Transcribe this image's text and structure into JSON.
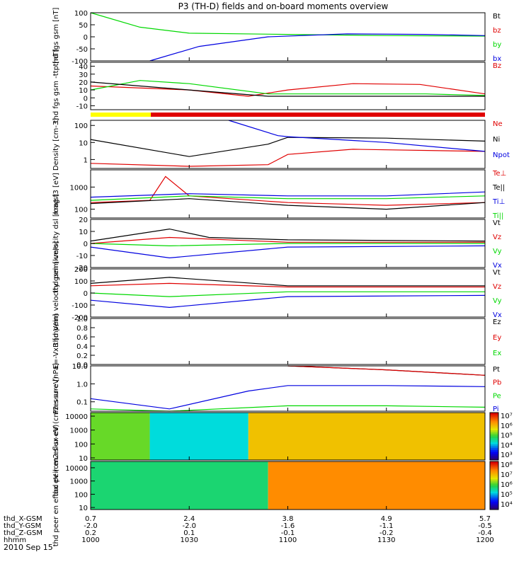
{
  "title": "P3 (TH-D) fields and on-board moments overview",
  "date": "2010 Sep 15",
  "colors": {
    "red": "#e00000",
    "green": "#00d800",
    "blue": "#0000e0",
    "black": "#000000",
    "yellow": "#ffff00"
  },
  "chart_data": [
    {
      "type": "line",
      "panel": "fgs-gsm",
      "ylabel": "thd fgs gsm [nT]",
      "yscale": "linear",
      "ylim": [
        -100,
        100
      ],
      "yticks": [
        "100",
        "50",
        "0",
        "-50",
        "-100"
      ],
      "legend": [
        "Bt",
        "bz",
        "by",
        "bx"
      ],
      "series": [
        {
          "name": "by",
          "color": "green",
          "x": [
            10.0,
            10.25,
            10.5,
            11.0,
            11.5,
            12.0
          ],
          "y": [
            100,
            40,
            15,
            10,
            5,
            3
          ]
        },
        {
          "name": "bx",
          "color": "blue",
          "x": [
            10.3,
            10.55,
            10.9,
            11.3,
            11.7,
            12.0
          ],
          "y": [
            -100,
            -40,
            0,
            12,
            10,
            5
          ]
        }
      ]
    },
    {
      "type": "line",
      "panel": "fgs-gsm-ttp",
      "ylabel": "thd fgs gsm -ttp [nT]",
      "yscale": "linear",
      "ylim": [
        -15,
        45
      ],
      "yticks": [
        "40",
        "30",
        "20",
        "10",
        "0",
        "-10"
      ],
      "legend": [
        "Bz"
      ],
      "series": [
        {
          "name": "Bz",
          "color": "red",
          "x": [
            10.0,
            10.5,
            10.8,
            11.0,
            11.33,
            11.67,
            12.0
          ],
          "y": [
            15,
            10,
            2,
            10,
            18,
            17,
            5
          ]
        },
        {
          "color": "green",
          "x": [
            10.0,
            10.25,
            10.5,
            10.9,
            11.3,
            11.7,
            12.0
          ],
          "y": [
            10,
            22,
            18,
            5,
            5,
            5,
            3
          ]
        },
        {
          "color": "black",
          "x": [
            10.0,
            10.5,
            10.9,
            11.3,
            11.7,
            12.0
          ],
          "y": [
            20,
            10,
            2,
            2,
            2,
            2
          ]
        }
      ]
    },
    {
      "type": "line",
      "panel": "density",
      "ylabel": "Density [cm-3]",
      "yscale": "log",
      "ylim": [
        0.3,
        200
      ],
      "yticks": [
        "100",
        "10",
        "1"
      ],
      "legend": [
        "Ne",
        "Ni",
        "Npot"
      ],
      "series": [
        {
          "name": "Ne",
          "color": "red",
          "x": [
            10.0,
            10.5,
            10.9,
            11.0,
            11.33,
            12.0
          ],
          "y": [
            0.6,
            0.4,
            0.5,
            2,
            4,
            3
          ]
        },
        {
          "name": "Ni",
          "color": "black",
          "x": [
            10.0,
            10.5,
            10.9,
            11.0,
            11.5,
            12.0
          ],
          "y": [
            15,
            1.5,
            8,
            20,
            18,
            12
          ]
        },
        {
          "name": "Npot",
          "color": "blue",
          "x": [
            10.7,
            10.95,
            11.0,
            11.5,
            12.0
          ],
          "y": [
            200,
            25,
            22,
            10,
            3
          ]
        }
      ]
    },
    {
      "type": "line",
      "panel": "temperature",
      "ylabel": "mag t3 [eV]",
      "yscale": "log",
      "ylim": [
        40,
        6000
      ],
      "yticks": [
        "1000",
        "100"
      ],
      "legend": [
        "Te⊥",
        "Te||",
        "Ti⊥",
        "Ti||"
      ],
      "series": [
        {
          "name": "Te⊥",
          "color": "red",
          "x": [
            10.0,
            10.3,
            10.38,
            10.5,
            11.0,
            11.5,
            12.0
          ],
          "y": [
            200,
            250,
            3000,
            400,
            200,
            150,
            200
          ]
        },
        {
          "name": "Te||",
          "color": "black",
          "x": [
            10.0,
            10.5,
            11.0,
            11.5,
            12.0
          ],
          "y": [
            180,
            300,
            150,
            100,
            200
          ]
        },
        {
          "name": "Ti⊥",
          "color": "blue",
          "x": [
            10.0,
            10.5,
            11.0,
            11.5,
            12.0
          ],
          "y": [
            350,
            500,
            400,
            400,
            600
          ]
        },
        {
          "name": "Ti||",
          "color": "green",
          "x": [
            10.0,
            10.5,
            11.0,
            11.5,
            12.0
          ],
          "y": [
            250,
            400,
            300,
            300,
            400
          ]
        }
      ]
    },
    {
      "type": "line",
      "panel": "peim-velocity-dsl",
      "ylabel": "thd peim velocity dsl [km/s]",
      "yscale": "linear",
      "ylim": [
        -20,
        20
      ],
      "yticks": [
        "20",
        "10",
        "0",
        "-10",
        "-20"
      ],
      "legend": [
        "Vt",
        "Vz",
        "Vy",
        "Vx"
      ],
      "series": [
        {
          "name": "Vt",
          "color": "black",
          "x": [
            10.0,
            10.4,
            10.6,
            11.0,
            12.0
          ],
          "y": [
            2,
            12,
            5,
            3,
            2
          ]
        },
        {
          "name": "Vz",
          "color": "red",
          "x": [
            10.0,
            10.4,
            11.0,
            12.0
          ],
          "y": [
            0,
            5,
            1,
            1
          ]
        },
        {
          "name": "Vy",
          "color": "green",
          "x": [
            10.0,
            10.4,
            11.0,
            12.0
          ],
          "y": [
            0,
            -2,
            0,
            0
          ]
        },
        {
          "name": "Vx",
          "color": "blue",
          "x": [
            10.0,
            10.4,
            11.0,
            12.0
          ],
          "y": [
            -3,
            -12,
            -3,
            -2
          ]
        }
      ]
    },
    {
      "type": "line",
      "panel": "peim-velocity-gsm",
      "ylabel": "thd peim velocity gsm [km/s]",
      "yscale": "linear",
      "ylim": [
        -200,
        200
      ],
      "yticks": [
        "200",
        "100",
        "0",
        "-100",
        "-200"
      ],
      "legend": [
        "Vt",
        "Vz",
        "Vy",
        "Vx"
      ],
      "series": [
        {
          "name": "Vt",
          "color": "black",
          "x": [
            10.0,
            10.4,
            11.0,
            12.0
          ],
          "y": [
            80,
            130,
            60,
            60
          ]
        },
        {
          "name": "Vz",
          "color": "red",
          "x": [
            10.0,
            10.4,
            11.0,
            12.0
          ],
          "y": [
            60,
            80,
            50,
            50
          ]
        },
        {
          "name": "Vy",
          "color": "green",
          "x": [
            10.0,
            10.4,
            11.0,
            12.0
          ],
          "y": [
            0,
            -30,
            10,
            10
          ]
        },
        {
          "name": "Vx",
          "color": "blue",
          "x": [
            10.0,
            10.4,
            11.0,
            12.0
          ],
          "y": [
            -60,
            -120,
            -30,
            -20
          ]
        }
      ]
    },
    {
      "type": "line",
      "panel": "efield",
      "ylabel": "E=-VxB [mV/m]",
      "yscale": "linear",
      "ylim": [
        0,
        1
      ],
      "yticks": [
        "1.0",
        "0.8",
        "0.6",
        "0.4",
        "0.2",
        "0.0"
      ],
      "legend": [
        "Ez",
        "Ey",
        "Ex"
      ],
      "series": []
    },
    {
      "type": "line",
      "panel": "pressure",
      "ylabel": "Pressure [nPa]",
      "yscale": "log",
      "ylim": [
        0.03,
        10
      ],
      "yticks": [
        "10.0",
        "1.0",
        "0.1"
      ],
      "legend": [
        "Pt",
        "Pb",
        "Pe",
        "Pi"
      ],
      "series": [
        {
          "name": "Pt",
          "color": "black",
          "x": [
            11.0,
            11.5,
            12.0
          ],
          "y": [
            10,
            6,
            3
          ]
        },
        {
          "name": "Pb",
          "color": "red",
          "x": [
            11.0,
            11.5,
            12.0
          ],
          "y": [
            10,
            6,
            3
          ]
        },
        {
          "name": "Pe",
          "color": "green",
          "x": [
            10.0,
            10.4,
            11.0,
            11.5,
            12.0
          ],
          "y": [
            0.04,
            0.03,
            0.06,
            0.06,
            0.05
          ]
        },
        {
          "name": "Pi",
          "color": "blue",
          "x": [
            10.0,
            10.4,
            10.8,
            11.0,
            11.5,
            12.0
          ],
          "y": [
            0.15,
            0.04,
            0.4,
            0.8,
            0.8,
            0.7
          ]
        }
      ]
    },
    {
      "type": "heatmap",
      "panel": "peir-en-eflux",
      "ylabel": "thd peir en eflux eV (cm2-s-sr-eV)",
      "yscale": "log",
      "ylim": [
        7,
        18000
      ],
      "yticks": [
        "10000",
        "1000",
        "100",
        "10"
      ],
      "colorbar": [
        "10⁷",
        "10⁶",
        "10⁵",
        "10⁴",
        "10³"
      ],
      "regions": [
        {
          "x": [
            10.0,
            10.3
          ],
          "y": [
            7,
            18000
          ],
          "level": 0.55
        },
        {
          "x": [
            10.3,
            10.8
          ],
          "y": [
            7,
            18000
          ],
          "level": 0.35
        },
        {
          "x": [
            10.8,
            12.0
          ],
          "y": [
            7,
            18000
          ],
          "level": 0.72
        }
      ]
    },
    {
      "type": "heatmap",
      "panel": "peer-en-eflux",
      "ylabel": "thd peer en eflux eV (cm2-s-sr-eV)",
      "yscale": "log",
      "ylim": [
        7,
        30000
      ],
      "yticks": [
        "10000",
        "1000",
        "100",
        "10"
      ],
      "colorbar": [
        "10⁸",
        "10⁷",
        "10⁶",
        "10⁵",
        "10⁴"
      ],
      "regions": [
        {
          "x": [
            10.0,
            10.9
          ],
          "y": [
            7,
            30000
          ],
          "level": 0.45
        },
        {
          "x": [
            10.9,
            12.0
          ],
          "y": [
            7,
            30000
          ],
          "level": 0.82
        }
      ]
    }
  ],
  "bottom_axis": {
    "row_labels": [
      "thd_X-GSM",
      "thd_Y-GSM",
      "thd_Z-GSM",
      "hhmm"
    ],
    "columns": [
      {
        "x": "0.7",
        "y": "-2.0",
        "z": "0.2",
        "t": "1000"
      },
      {
        "x": "2.4",
        "y": "-2.0",
        "z": "0.1",
        "t": "1030"
      },
      {
        "x": "3.8",
        "y": "-1.6",
        "z": "-0.1",
        "t": "1100"
      },
      {
        "x": "4.9",
        "y": "-1.1",
        "z": "-0.2",
        "t": "1130"
      },
      {
        "x": "5.7",
        "y": "-0.5",
        "z": "-0.4",
        "t": "1200"
      }
    ]
  }
}
